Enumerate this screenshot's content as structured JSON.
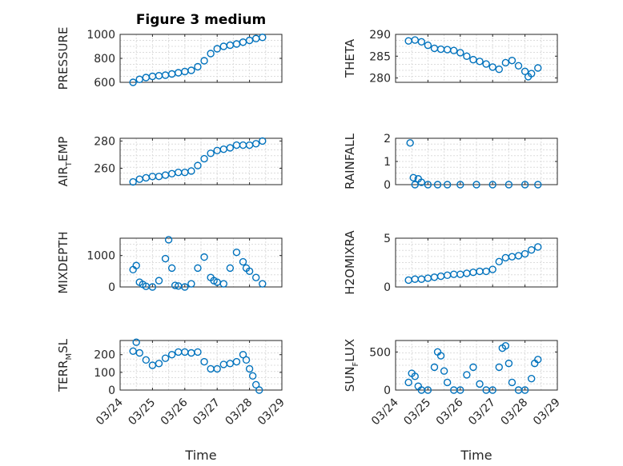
{
  "figure": {
    "title": "Figure 3 medium",
    "xlabel": "Time",
    "xtick_labels": [
      "03/24",
      "03/25",
      "03/26",
      "03/27",
      "03/28",
      "03/29"
    ]
  },
  "chart_data": [
    {
      "type": "scatter",
      "ylabel": "PRESSURE",
      "ylim": [
        600,
        1000
      ],
      "yticks": [
        600,
        800,
        1000
      ],
      "grid": true,
      "x": [
        24.4,
        24.6,
        24.8,
        25.0,
        25.2,
        25.4,
        25.6,
        25.8,
        26.0,
        26.2,
        26.4,
        26.6,
        26.8,
        27.0,
        27.2,
        27.4,
        27.6,
        27.8,
        28.0,
        28.2,
        28.4
      ],
      "y": [
        600,
        625,
        640,
        650,
        655,
        660,
        670,
        680,
        690,
        700,
        730,
        780,
        840,
        880,
        900,
        910,
        920,
        935,
        950,
        965,
        975
      ]
    },
    {
      "type": "scatter",
      "ylabel": "THETA",
      "ylim": [
        279,
        290
      ],
      "yticks": [
        280,
        285,
        290
      ],
      "grid": true,
      "x": [
        24.4,
        24.6,
        24.8,
        25.0,
        25.2,
        25.4,
        25.6,
        25.8,
        26.0,
        26.2,
        26.4,
        26.6,
        26.8,
        27.0,
        27.2,
        27.4,
        27.6,
        27.8,
        28.0,
        28.1,
        28.2,
        28.4
      ],
      "y": [
        288.5,
        288.7,
        288.3,
        287.5,
        286.8,
        286.6,
        286.5,
        286.3,
        285.8,
        285.0,
        284.2,
        283.8,
        283.2,
        282.5,
        282.0,
        283.5,
        284.0,
        282.8,
        281.5,
        280.3,
        281.0,
        282.3
      ]
    },
    {
      "type": "scatter",
      "ylabel": "AIR_TEMP",
      "ylabel_main": "AIR",
      "ylabel_sub": "T",
      "ylabel_rest": "EMP",
      "ylim": [
        248,
        282
      ],
      "yticks": [
        260,
        280
      ],
      "grid": true,
      "x": [
        24.4,
        24.6,
        24.8,
        25.0,
        25.2,
        25.4,
        25.6,
        25.8,
        26.0,
        26.2,
        26.4,
        26.6,
        26.8,
        27.0,
        27.2,
        27.4,
        27.6,
        27.8,
        28.0,
        28.2,
        28.4
      ],
      "y": [
        250,
        252,
        253,
        254,
        254,
        255,
        256,
        257,
        257,
        258,
        262,
        267,
        271,
        273,
        274,
        275,
        277,
        277,
        277,
        278,
        280
      ]
    },
    {
      "type": "scatter",
      "ylabel": "RAINFALL",
      "ylim": [
        0,
        2
      ],
      "yticks": [
        0,
        1,
        2
      ],
      "grid": true,
      "x": [
        24.45,
        24.55,
        24.6,
        24.7,
        24.8,
        25.0,
        25.3,
        25.6,
        26.0,
        26.5,
        27.0,
        27.5,
        28.0,
        28.4
      ],
      "y": [
        1.8,
        0.3,
        0.0,
        0.25,
        0.1,
        0,
        0,
        0,
        0,
        0,
        0,
        0,
        0,
        0
      ]
    },
    {
      "type": "scatter",
      "ylabel": "MIXDEPTH",
      "ylim": [
        0,
        1550
      ],
      "yticks": [
        0,
        1000
      ],
      "grid": true,
      "x": [
        24.4,
        24.5,
        24.6,
        24.7,
        24.8,
        25.0,
        25.2,
        25.4,
        25.5,
        25.6,
        25.7,
        25.8,
        26.0,
        26.2,
        26.4,
        26.6,
        26.8,
        26.9,
        27.0,
        27.2,
        27.4,
        27.6,
        27.8,
        27.9,
        28.0,
        28.2,
        28.4
      ],
      "y": [
        550,
        680,
        150,
        80,
        20,
        0,
        200,
        900,
        1500,
        600,
        50,
        30,
        0,
        100,
        600,
        950,
        300,
        200,
        150,
        100,
        600,
        1100,
        800,
        600,
        500,
        300,
        100
      ]
    },
    {
      "type": "scatter",
      "ylabel": "H2OMIXRA",
      "ylim": [
        0,
        5
      ],
      "yticks": [
        0,
        5
      ],
      "grid": true,
      "x": [
        24.4,
        24.6,
        24.8,
        25.0,
        25.2,
        25.4,
        25.6,
        25.8,
        26.0,
        26.2,
        26.4,
        26.6,
        26.8,
        27.0,
        27.2,
        27.4,
        27.6,
        27.8,
        28.0,
        28.2,
        28.4
      ],
      "y": [
        0.7,
        0.8,
        0.8,
        0.9,
        1.0,
        1.1,
        1.2,
        1.3,
        1.3,
        1.4,
        1.5,
        1.6,
        1.6,
        1.8,
        2.6,
        3.0,
        3.1,
        3.2,
        3.4,
        3.8,
        4.1
      ]
    },
    {
      "type": "scatter",
      "ylabel": "TERR_MSL",
      "ylabel_main": "TERR",
      "ylabel_sub": "M",
      "ylabel_rest": "SL",
      "ylim": [
        0,
        280
      ],
      "yticks": [
        0,
        100,
        200
      ],
      "grid": true,
      "x": [
        24.4,
        24.5,
        24.6,
        24.8,
        25.0,
        25.2,
        25.4,
        25.6,
        25.8,
        26.0,
        26.2,
        26.4,
        26.6,
        26.8,
        27.0,
        27.2,
        27.4,
        27.6,
        27.8,
        27.9,
        28.0,
        28.1,
        28.2,
        28.3
      ],
      "y": [
        220,
        270,
        210,
        170,
        140,
        150,
        180,
        200,
        215,
        215,
        210,
        215,
        160,
        120,
        120,
        145,
        150,
        160,
        200,
        170,
        120,
        80,
        30,
        0
      ]
    },
    {
      "type": "scatter",
      "ylabel": "SUN_FLUX",
      "ylabel_main": "SUN",
      "ylabel_sub": "F",
      "ylabel_rest": "LUX",
      "ylim": [
        0,
        650
      ],
      "yticks": [
        0,
        500
      ],
      "grid": true,
      "x": [
        24.4,
        24.5,
        24.6,
        24.7,
        24.8,
        25.0,
        25.2,
        25.3,
        25.4,
        25.5,
        25.6,
        25.8,
        26.0,
        26.2,
        26.4,
        26.6,
        26.8,
        27.0,
        27.2,
        27.3,
        27.4,
        27.5,
        27.6,
        27.8,
        28.0,
        28.2,
        28.3,
        28.4
      ],
      "y": [
        100,
        220,
        180,
        50,
        0,
        0,
        300,
        500,
        450,
        250,
        100,
        0,
        0,
        200,
        300,
        80,
        0,
        0,
        300,
        550,
        580,
        350,
        100,
        0,
        0,
        150,
        350,
        400
      ]
    }
  ]
}
